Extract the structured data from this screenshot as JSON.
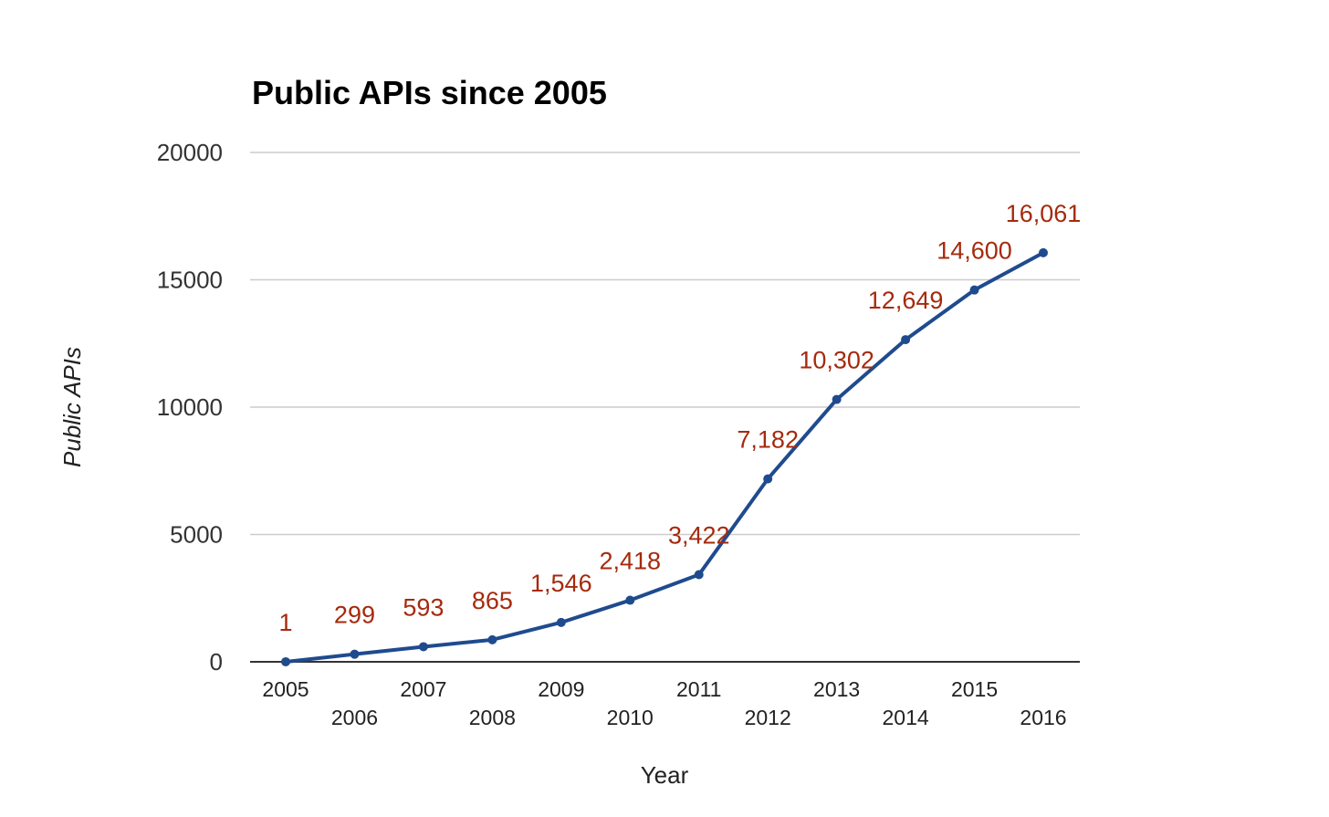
{
  "chart_data": {
    "type": "line",
    "title": "Public APIs since 2005",
    "xlabel": "Year",
    "ylabel": "Public APIs",
    "categories": [
      "2005",
      "2006",
      "2007",
      "2008",
      "2009",
      "2010",
      "2011",
      "2012",
      "2013",
      "2014",
      "2015",
      "2016"
    ],
    "series": [
      {
        "name": "Public APIs",
        "values": [
          1,
          299,
          593,
          865,
          1546,
          2418,
          3422,
          7182,
          10302,
          12649,
          14600,
          16061
        ],
        "labels": [
          "1",
          "299",
          "593",
          "865",
          "1,546",
          "2,418",
          "3,422",
          "7,182",
          "10,302",
          "12,649",
          "14,600",
          "16,061"
        ]
      }
    ],
    "yticks": [
      "0",
      "5000",
      "10000",
      "15000",
      "20000"
    ],
    "ylim": [
      0,
      20000
    ],
    "grid": true,
    "line_color": "#1f4b8e",
    "label_color": "#a52a0d",
    "grid_color": "#cccccc"
  }
}
